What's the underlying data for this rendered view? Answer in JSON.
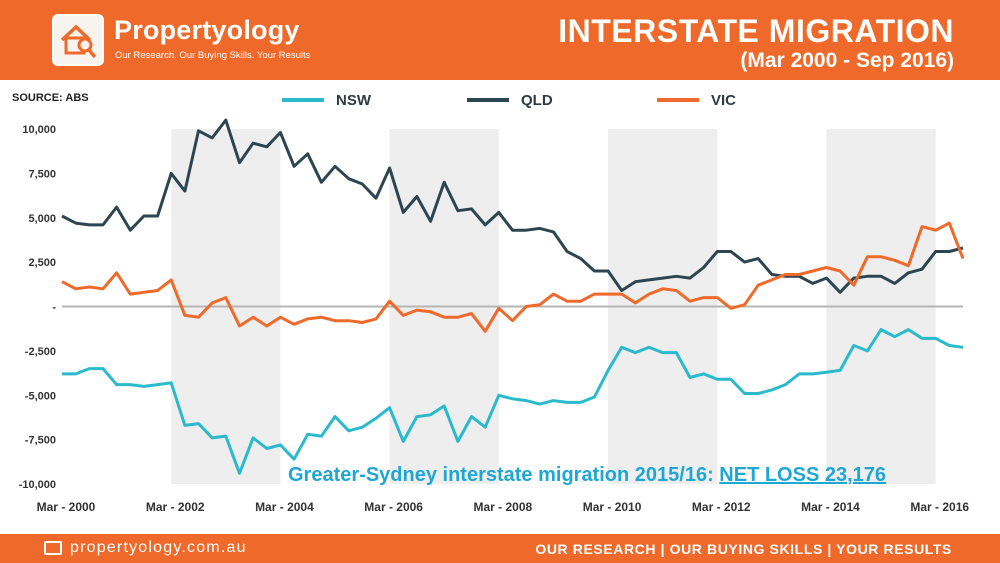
{
  "header": {
    "logo_name": "Propertyology",
    "logo_tagline": "Our Research. Our Buying Skills. Your Results",
    "title": "INTERSTATE MIGRATION",
    "subtitle": "(Mar 2000 - Sep 2016)",
    "source": "SOURCE: ABS"
  },
  "footer": {
    "website": "propertyology.com.au",
    "tagline": "OUR RESEARCH | OUR BUYING SKILLS | YOUR RESULTS"
  },
  "annotation": {
    "text": "Greater-Sydney interstate migration 2015/16: ",
    "highlight": "NET LOSS 23,176",
    "color": "#1fa7d4"
  },
  "chart_data": {
    "type": "line",
    "x": [
      "Mar 2000",
      "Jun 2000",
      "Sep 2000",
      "Dec 2000",
      "Mar 2001",
      "Jun 2001",
      "Sep 2001",
      "Dec 2001",
      "Mar 2002",
      "Jun 2002",
      "Sep 2002",
      "Dec 2002",
      "Mar 2003",
      "Jun 2003",
      "Sep 2003",
      "Dec 2003",
      "Mar 2004",
      "Jun 2004",
      "Sep 2004",
      "Dec 2004",
      "Mar 2005",
      "Jun 2005",
      "Sep 2005",
      "Dec 2005",
      "Mar 2006",
      "Jun 2006",
      "Sep 2006",
      "Dec 2006",
      "Mar 2007",
      "Jun 2007",
      "Sep 2007",
      "Dec 2007",
      "Mar 2008",
      "Jun 2008",
      "Sep 2008",
      "Dec 2008",
      "Mar 2009",
      "Jun 2009",
      "Sep 2009",
      "Dec 2009",
      "Mar 2010",
      "Jun 2010",
      "Sep 2010",
      "Dec 2010",
      "Mar 2011",
      "Jun 2011",
      "Sep 2011",
      "Dec 2011",
      "Mar 2012",
      "Jun 2012",
      "Sep 2012",
      "Dec 2012",
      "Mar 2013",
      "Jun 2013",
      "Sep 2013",
      "Dec 2013",
      "Mar 2014",
      "Jun 2014",
      "Sep 2014",
      "Dec 2014",
      "Mar 2015",
      "Jun 2015",
      "Sep 2015",
      "Dec 2015",
      "Mar 2016",
      "Jun 2016",
      "Sep 2016"
    ],
    "x_tick_labels": [
      "Mar - 2000",
      "Mar - 2002",
      "Mar - 2004",
      "Mar - 2006",
      "Mar - 2008",
      "Mar - 2010",
      "Mar - 2012",
      "Mar - 2014",
      "Mar - 2016"
    ],
    "x_tick_index": [
      0,
      8,
      16,
      24,
      32,
      40,
      48,
      56,
      64
    ],
    "ylim": [
      -10000,
      10000
    ],
    "yticks": [
      10000,
      7500,
      5000,
      2500,
      0,
      -2500,
      -5000,
      -7500,
      -10000
    ],
    "ytick_labels": [
      "10,000",
      "7,500",
      "5,000",
      "2,500",
      "-",
      "-2,500",
      "-5,000",
      "-7,500",
      "-10,000"
    ],
    "legend_position": "top",
    "grid": false,
    "shaded_bands": [
      [
        8,
        16
      ],
      [
        24,
        32
      ],
      [
        40,
        48
      ],
      [
        56,
        64
      ]
    ],
    "series": [
      {
        "name": "NSW",
        "color": "#2bb9cc",
        "values": [
          -3800,
          -3800,
          -3500,
          -3500,
          -4400,
          -4400,
          -4500,
          -4400,
          -4300,
          -6700,
          -6600,
          -7400,
          -7300,
          -9400,
          -7400,
          -8000,
          -7800,
          -8600,
          -7200,
          -7300,
          -6200,
          -7000,
          -6800,
          -6300,
          -5700,
          -7600,
          -6200,
          -6100,
          -5600,
          -7600,
          -6200,
          -6800,
          -5000,
          -5200,
          -5300,
          -5500,
          -5300,
          -5400,
          -5400,
          -5100,
          -3600,
          -2300,
          -2600,
          -2300,
          -2600,
          -2600,
          -4000,
          -3800,
          -4100,
          -4100,
          -4900,
          -4900,
          -4700,
          -4400,
          -3800,
          -3800,
          -3700,
          -3600,
          -2200,
          -2500,
          -1300,
          -1700,
          -1300,
          -1800,
          -1800,
          -2200,
          -2300
        ]
      },
      {
        "name": "QLD",
        "color": "#2d4550",
        "values": [
          5100,
          4700,
          4600,
          4600,
          5600,
          4300,
          5100,
          5100,
          7500,
          6500,
          9900,
          9500,
          10500,
          8100,
          9200,
          9000,
          9800,
          7900,
          8600,
          7000,
          7900,
          7200,
          6900,
          6100,
          7800,
          5300,
          6200,
          4800,
          7000,
          5400,
          5500,
          4600,
          5300,
          4300,
          4300,
          4400,
          4200,
          3100,
          2700,
          2000,
          2000,
          900,
          1400,
          1500,
          1600,
          1700,
          1600,
          2200,
          3100,
          3100,
          2500,
          2700,
          1800,
          1700,
          1700,
          1300,
          1600,
          800,
          1600,
          1700,
          1700,
          1300,
          1900,
          2100,
          3100,
          3100,
          3300
        ]
      },
      {
        "name": "VIC",
        "color": "#ef6a2a",
        "values": [
          1400,
          1000,
          1100,
          1000,
          1900,
          700,
          800,
          900,
          1500,
          -500,
          -600,
          200,
          500,
          -1100,
          -600,
          -1100,
          -600,
          -1000,
          -700,
          -600,
          -800,
          -800,
          -900,
          -700,
          300,
          -500,
          -200,
          -300,
          -600,
          -600,
          -400,
          -1400,
          -100,
          -800,
          0,
          100,
          700,
          300,
          300,
          700,
          700,
          700,
          200,
          700,
          1000,
          900,
          300,
          500,
          500,
          -100,
          100,
          1200,
          1500,
          1800,
          1800,
          2000,
          2200,
          2000,
          1200,
          2800,
          2800,
          2600,
          2300,
          4500,
          4300,
          4700,
          2700
        ]
      }
    ]
  }
}
